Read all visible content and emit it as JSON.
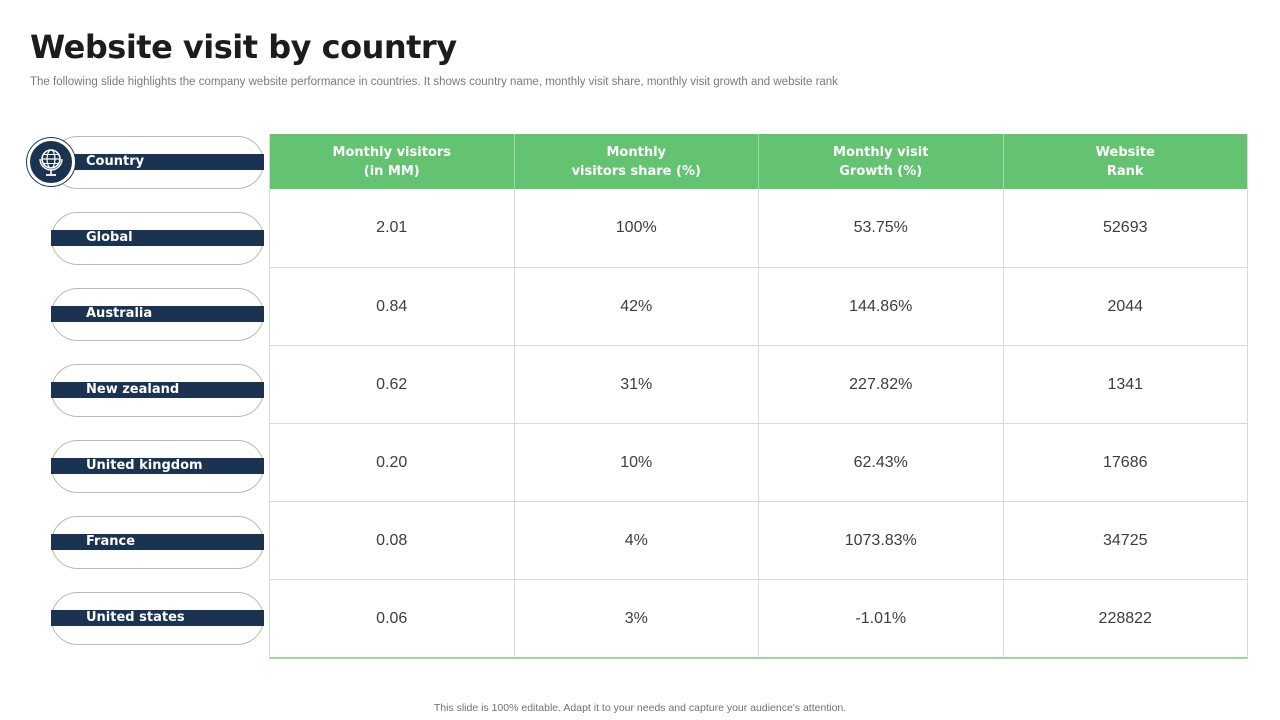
{
  "title": "Website visit by country",
  "subtitle": "The following slide highlights the company website performance in countries. It shows country name, monthly visit share, monthly visit growth and website rank",
  "row_header_label": "Country",
  "header_icon": "globe-icon",
  "columns": [
    "Monthly visitors\n(in MM)",
    "Monthly\nvisitors share (%)",
    "Monthly visit\nGrowth (%)",
    "Website\nRank"
  ],
  "rows": [
    {
      "country": "Global",
      "cells": [
        "2.01",
        "100%",
        "53.75%",
        "52693"
      ]
    },
    {
      "country": "Australia",
      "cells": [
        "0.84",
        "42%",
        "144.86%",
        "2044"
      ]
    },
    {
      "country": "New zealand",
      "cells": [
        "0.62",
        "31%",
        "227.82%",
        "1341"
      ]
    },
    {
      "country": "United kingdom",
      "cells": [
        "0.20",
        "10%",
        "62.43%",
        "17686"
      ]
    },
    {
      "country": "France",
      "cells": [
        "0.08",
        "4%",
        "1073.83%",
        "34725"
      ]
    },
    {
      "country": "United states",
      "cells": [
        "0.06",
        "3%",
        "-1.01%",
        "228822"
      ]
    }
  ],
  "footer": "This slide is 100% editable. Adapt it to your needs and capture your audience's attention.",
  "colors": {
    "header_green": "#63c371",
    "navy": "#1a3350"
  }
}
